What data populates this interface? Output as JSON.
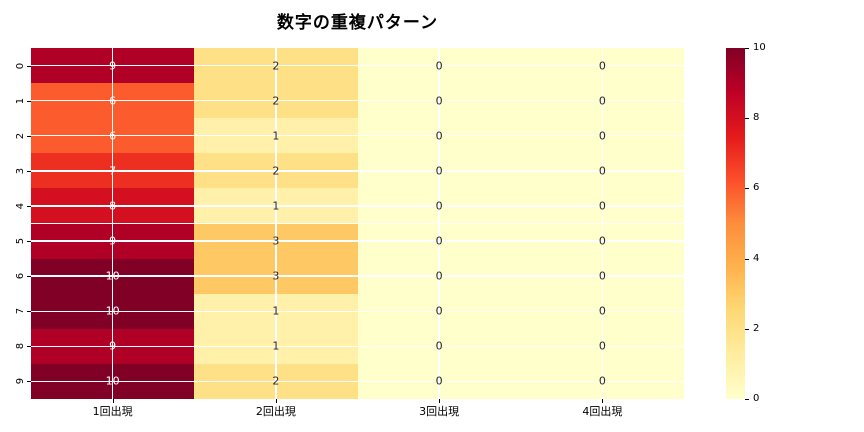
{
  "title": "数字の重複パターン",
  "chart_data": {
    "type": "heatmap",
    "title": "数字の重複パターン",
    "rows": [
      "0",
      "1",
      "2",
      "3",
      "4",
      "5",
      "6",
      "7",
      "8",
      "9"
    ],
    "columns": [
      "1回出現",
      "2回出現",
      "3回出現",
      "4回出現"
    ],
    "values": [
      [
        9,
        2,
        0,
        0
      ],
      [
        6,
        2,
        0,
        0
      ],
      [
        6,
        1,
        0,
        0
      ],
      [
        7,
        2,
        0,
        0
      ],
      [
        8,
        1,
        0,
        0
      ],
      [
        9,
        3,
        0,
        0
      ],
      [
        10,
        3,
        0,
        0
      ],
      [
        10,
        1,
        0,
        0
      ],
      [
        9,
        1,
        0,
        0
      ],
      [
        10,
        2,
        0,
        0
      ]
    ],
    "vmin": 0,
    "vmax": 10,
    "colorbar_ticks": [
      0,
      2,
      4,
      6,
      8,
      10
    ],
    "colormap_name": "YlOrRd",
    "colormap_stops": [
      "#ffffcc",
      "#ffeda0",
      "#fed976",
      "#feb24c",
      "#fd8d3c",
      "#fc4e2a",
      "#e31a1c",
      "#bd0026",
      "#800026"
    ],
    "grid_line_color": "#ffffff",
    "annot_color_on_light": "#262626",
    "annot_color_on_dark": "#ffffff",
    "legend_position": "right-colorbar",
    "annot": true
  }
}
